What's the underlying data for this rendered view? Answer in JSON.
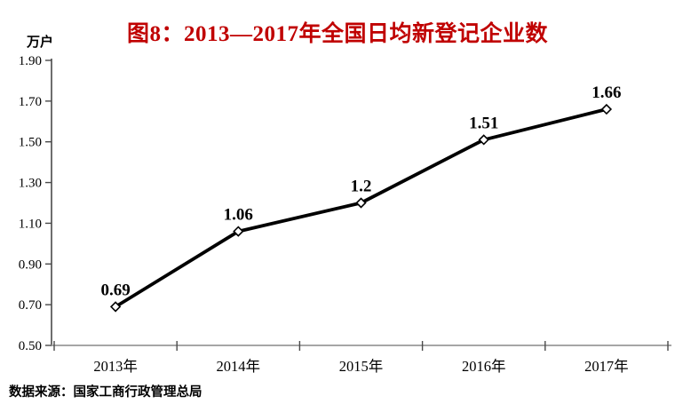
{
  "chart_data": {
    "type": "line",
    "title": "图8：2013—2017年全国日均新登记企业数",
    "title_color": "#c00000",
    "unit_label": "万户",
    "categories": [
      "2013年",
      "2014年",
      "2015年",
      "2016年",
      "2017年"
    ],
    "values": [
      0.69,
      1.06,
      1.2,
      1.51,
      1.66
    ],
    "point_labels": [
      "0.69",
      "1.06",
      "1.2",
      "1.51",
      "1.66"
    ],
    "y_ticks": [
      "1.90",
      "1.70",
      "1.50",
      "1.30",
      "1.10",
      "0.90",
      "0.70",
      "0.50"
    ],
    "ylim": [
      0.5,
      1.9
    ],
    "grid": false,
    "legend": "none",
    "line_color": "#000000",
    "marker": "open-diamond",
    "marker_fill": "#ffffff",
    "source_note": "数据来源：国家工商行政管理总局"
  }
}
